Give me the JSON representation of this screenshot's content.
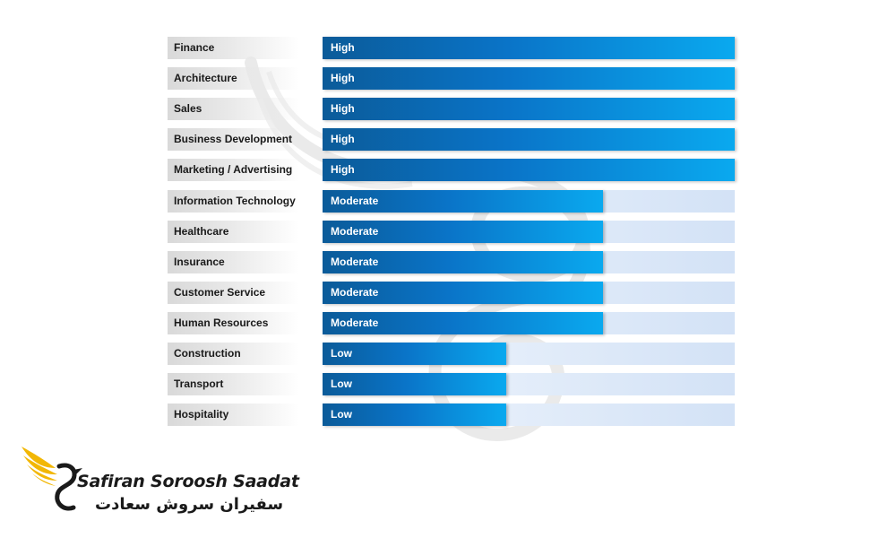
{
  "chart_data": {
    "type": "bar",
    "orientation": "horizontal",
    "title": "",
    "xlabel": "",
    "ylabel": "",
    "levels": {
      "High": 1.0,
      "Moderate": 0.68,
      "Low": 0.445
    },
    "categories": [
      "Finance",
      "Architecture",
      "Sales",
      "Business Development",
      "Marketing / Advertising",
      "Information Technology",
      "Healthcare",
      "Insurance",
      "Customer Service",
      "Human Resources",
      "Construction",
      "Transport",
      "Hospitality"
    ],
    "values": [
      "High",
      "High",
      "High",
      "High",
      "High",
      "Moderate",
      "Moderate",
      "Moderate",
      "Moderate",
      "Moderate",
      "Low",
      "Low",
      "Low"
    ],
    "colors": {
      "bar_start": "#0b5b99",
      "bar_end": "#0aa9ef",
      "track": "#d3e2f6",
      "label_bg": "#d9d9d9"
    }
  },
  "logo": {
    "name_en": "Safiran Soroosh Saadat",
    "name_fa": "سفیران سروش سعادت",
    "colors": {
      "wing": "#f2b705",
      "text": "#1a1a1a"
    }
  }
}
